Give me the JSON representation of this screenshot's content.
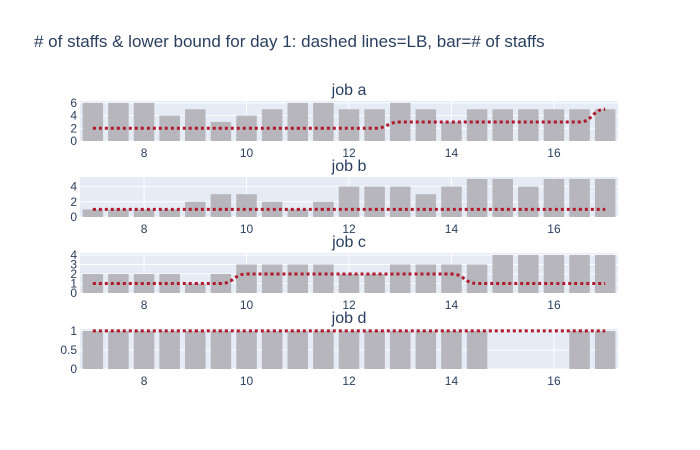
{
  "title": "# of staffs & lower bound for day 1: dashed lines=LB, bar=# of staffs",
  "colors": {
    "plot_bg": "#e5ecf6",
    "grid": "#ffffff",
    "bar": "#b3b3b8",
    "lb_line": "#b2182b",
    "text": "#2a3f5f"
  },
  "chart_data": [
    {
      "type": "bar",
      "title": "job a",
      "x": [
        7,
        7.5,
        8,
        8.5,
        9,
        9.5,
        10,
        10.5,
        11,
        11.5,
        12,
        12.5,
        13,
        13.5,
        14,
        14.5,
        15,
        15.5,
        16,
        16.5,
        17
      ],
      "staff": [
        6,
        6,
        6,
        4,
        5,
        3,
        4,
        5,
        6,
        6,
        5,
        5,
        6,
        5,
        3,
        5,
        5,
        5,
        5,
        5,
        5
      ],
      "lower_bound": [
        2,
        2,
        2,
        2,
        2,
        2,
        2,
        2,
        2,
        2,
        2,
        2,
        3,
        3,
        3,
        3,
        3,
        3,
        3,
        3,
        5
      ],
      "yticks": [
        0,
        2,
        4,
        6
      ],
      "ylim": [
        0,
        6.3
      ],
      "xticks": [
        8,
        10,
        12,
        14,
        16
      ],
      "xlim": [
        6.75,
        17.25
      ]
    },
    {
      "type": "bar",
      "title": "job b",
      "x": [
        7,
        7.5,
        8,
        8.5,
        9,
        9.5,
        10,
        10.5,
        11,
        11.5,
        12,
        12.5,
        13,
        13.5,
        14,
        14.5,
        15,
        15.5,
        16,
        16.5,
        17
      ],
      "staff": [
        1,
        1,
        1,
        1,
        2,
        3,
        3,
        2,
        1,
        2,
        4,
        4,
        4,
        3,
        4,
        5,
        5,
        4,
        5,
        5,
        5
      ],
      "lower_bound": [
        1,
        1,
        1,
        1,
        1,
        1,
        1,
        1,
        1,
        1,
        1,
        1,
        1,
        1,
        1,
        1,
        1,
        1,
        1,
        1,
        1
      ],
      "yticks": [
        0,
        2,
        4
      ],
      "ylim": [
        0,
        5.26
      ],
      "xticks": [
        8,
        10,
        12,
        14,
        16
      ],
      "xlim": [
        6.75,
        17.25
      ]
    },
    {
      "type": "bar",
      "title": "job c",
      "x": [
        7,
        7.5,
        8,
        8.5,
        9,
        9.5,
        10,
        10.5,
        11,
        11.5,
        12,
        12.5,
        13,
        13.5,
        14,
        14.5,
        15,
        15.5,
        16,
        16.5,
        17
      ],
      "staff": [
        2,
        2,
        2,
        2,
        1,
        2,
        3,
        3,
        3,
        3,
        2,
        2,
        3,
        3,
        3,
        3,
        4,
        4,
        4,
        4,
        4
      ],
      "lower_bound": [
        1,
        1,
        1,
        1,
        1,
        1,
        2,
        2,
        2,
        2,
        2,
        2,
        2,
        2,
        2,
        1,
        1,
        1,
        1,
        1,
        1
      ],
      "yticks": [
        0,
        1,
        2,
        3,
        4
      ],
      "ylim": [
        0,
        4.21
      ],
      "xticks": [
        8,
        10,
        12,
        14,
        16
      ],
      "xlim": [
        6.75,
        17.25
      ]
    },
    {
      "type": "bar",
      "title": "job d",
      "x": [
        7,
        7.5,
        8,
        8.5,
        9,
        9.5,
        10,
        10.5,
        11,
        11.5,
        12,
        12.5,
        13,
        13.5,
        14,
        14.5,
        15,
        15.5,
        16,
        16.5,
        17
      ],
      "staff": [
        1,
        1,
        1,
        1,
        1,
        1,
        1,
        1,
        1,
        1,
        1,
        1,
        1,
        1,
        1,
        1,
        0,
        0,
        0,
        1,
        1
      ],
      "lower_bound": [
        1,
        1,
        1,
        1,
        1,
        1,
        1,
        1,
        1,
        1,
        1,
        1,
        1,
        1,
        1,
        1,
        1,
        1,
        1,
        1,
        1
      ],
      "yticks": [
        0,
        0.5,
        1
      ],
      "ylim": [
        0,
        1.05
      ],
      "xticks": [
        8,
        10,
        12,
        14,
        16
      ],
      "xlim": [
        6.75,
        17.25
      ]
    }
  ]
}
